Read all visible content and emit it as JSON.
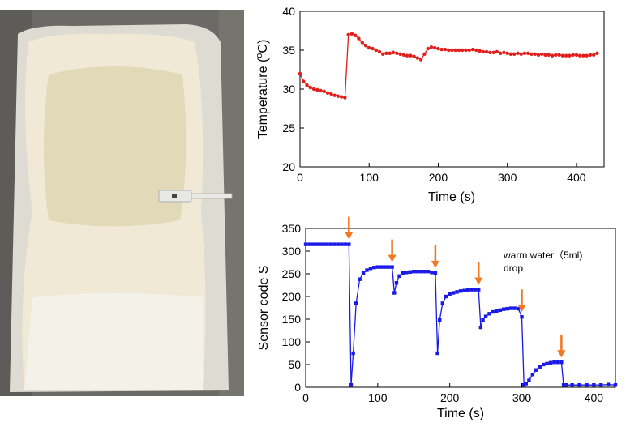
{
  "photo": {
    "subject": "diaper-pad-with-sensor",
    "colors": {
      "background": "#6b6a66",
      "pad": "#efe9d6",
      "pad_shadow": "#cfc6a6",
      "sensor": "#e8e8e6"
    }
  },
  "chart_data": [
    {
      "type": "line",
      "ylabel_main": "Temperature (",
      "ylabel_sup": "o",
      "ylabel_tail": "C)",
      "xlabel": "Time (s)",
      "xlim": [
        0,
        440
      ],
      "ylim": [
        20,
        40
      ],
      "xticks": [
        0,
        100,
        200,
        300,
        400
      ],
      "yticks": [
        20,
        25,
        30,
        35,
        40
      ],
      "color": "#e0201c",
      "grid": false,
      "x": [
        0,
        5,
        10,
        15,
        20,
        25,
        30,
        35,
        40,
        45,
        50,
        55,
        60,
        65,
        70,
        75,
        80,
        85,
        90,
        95,
        100,
        105,
        110,
        115,
        120,
        125,
        130,
        135,
        140,
        145,
        150,
        155,
        160,
        165,
        170,
        175,
        180,
        185,
        190,
        195,
        200,
        205,
        210,
        215,
        220,
        225,
        230,
        235,
        240,
        245,
        250,
        255,
        260,
        265,
        270,
        275,
        280,
        285,
        290,
        295,
        300,
        305,
        310,
        315,
        320,
        325,
        330,
        335,
        340,
        345,
        350,
        355,
        360,
        365,
        370,
        375,
        380,
        385,
        390,
        395,
        400,
        405,
        410,
        415,
        420,
        425,
        430
      ],
      "y": [
        32.0,
        31.0,
        30.5,
        30.2,
        30.0,
        29.9,
        29.8,
        29.7,
        29.5,
        29.4,
        29.2,
        29.1,
        29.0,
        28.9,
        37.0,
        37.1,
        36.9,
        36.5,
        36.0,
        35.6,
        35.3,
        35.2,
        35.0,
        34.8,
        34.5,
        34.6,
        34.6,
        34.7,
        34.6,
        34.5,
        34.4,
        34.3,
        34.3,
        34.2,
        34.0,
        33.8,
        34.5,
        35.2,
        35.4,
        35.3,
        35.2,
        35.1,
        35.1,
        35.0,
        35.0,
        35.0,
        35.0,
        35.0,
        35.0,
        35.0,
        35.1,
        35.0,
        34.9,
        34.8,
        34.8,
        34.7,
        34.7,
        34.8,
        34.6,
        34.7,
        34.6,
        34.5,
        34.5,
        34.6,
        34.5,
        34.6,
        34.6,
        34.5,
        34.5,
        34.4,
        34.5,
        34.4,
        34.4,
        34.3,
        34.4,
        34.4,
        34.3,
        34.3,
        34.3,
        34.4,
        34.4,
        34.3,
        34.3,
        34.3,
        34.4,
        34.4,
        34.6
      ]
    },
    {
      "type": "line",
      "ylabel": "Sensor code S",
      "xlabel": "Time (s)",
      "xlim": [
        0,
        430
      ],
      "ylim": [
        0,
        350
      ],
      "xticks": [
        0,
        100,
        200,
        300,
        400
      ],
      "yticks": [
        0,
        50,
        100,
        150,
        200,
        250,
        300,
        350
      ],
      "color": "#1a1ae6",
      "arrow_color": "#f07820",
      "grid": false,
      "annotation": {
        "line1": "warm water（5ml)",
        "line2": "drop"
      },
      "drop_times": [
        60,
        120,
        180,
        240,
        300,
        355
      ],
      "x": [
        0,
        5,
        10,
        15,
        20,
        25,
        30,
        35,
        40,
        45,
        50,
        55,
        60,
        63,
        66,
        70,
        75,
        80,
        85,
        90,
        95,
        100,
        105,
        110,
        115,
        120,
        123,
        126,
        130,
        135,
        140,
        145,
        150,
        155,
        160,
        165,
        170,
        175,
        180,
        183,
        186,
        190,
        195,
        200,
        205,
        210,
        215,
        220,
        225,
        230,
        235,
        240,
        243,
        246,
        250,
        255,
        260,
        265,
        270,
        275,
        280,
        285,
        290,
        295,
        300,
        303,
        306,
        310,
        315,
        320,
        325,
        330,
        335,
        340,
        345,
        350,
        355,
        358,
        362,
        370,
        380,
        390,
        400,
        410,
        420,
        430
      ],
      "y": [
        315,
        315,
        315,
        315,
        315,
        315,
        315,
        315,
        315,
        315,
        315,
        315,
        315,
        5,
        75,
        185,
        238,
        252,
        258,
        262,
        264,
        265,
        265,
        265,
        265,
        265,
        208,
        230,
        245,
        252,
        253,
        254,
        255,
        255,
        255,
        255,
        255,
        253,
        252,
        75,
        148,
        185,
        200,
        205,
        208,
        210,
        212,
        213,
        214,
        215,
        215,
        215,
        132,
        148,
        156,
        162,
        166,
        168,
        170,
        172,
        173,
        174,
        174,
        173,
        155,
        5,
        8,
        15,
        28,
        38,
        45,
        50,
        52,
        54,
        55,
        55,
        55,
        5,
        5,
        5,
        5,
        5,
        5,
        5,
        6,
        5
      ]
    }
  ]
}
